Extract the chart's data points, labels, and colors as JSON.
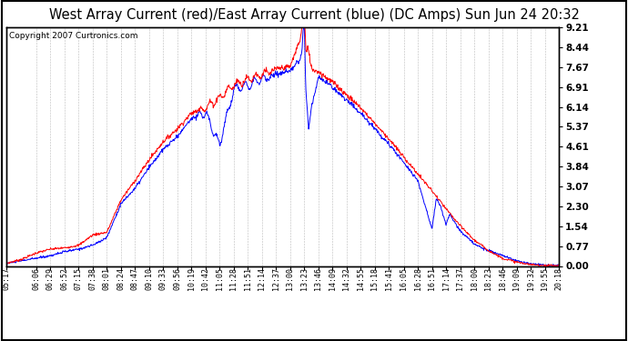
{
  "title": "West Array Current (red)/East Array Current (blue) (DC Amps) Sun Jun 24 20:32",
  "copyright": "Copyright 2007 Curtronics.com",
  "background_color": "#ffffff",
  "plot_bg_color": "#ffffff",
  "grid_color": "#aaaaaa",
  "ylim": [
    0.0,
    9.21
  ],
  "yticks": [
    0.0,
    0.77,
    1.54,
    2.3,
    3.07,
    3.84,
    4.61,
    5.37,
    6.14,
    6.91,
    7.67,
    8.44,
    9.21
  ],
  "xtick_labels": [
    "05:17",
    "06:06",
    "06:29",
    "06:52",
    "07:15",
    "07:38",
    "08:01",
    "08:24",
    "08:47",
    "09:10",
    "09:33",
    "09:56",
    "10:19",
    "10:42",
    "11:05",
    "11:28",
    "11:51",
    "12:14",
    "12:37",
    "13:00",
    "13:23",
    "13:46",
    "14:09",
    "14:32",
    "14:55",
    "15:18",
    "15:41",
    "16:05",
    "16:28",
    "16:51",
    "17:14",
    "17:37",
    "18:00",
    "18:23",
    "18:46",
    "19:09",
    "19:32",
    "19:55",
    "20:18"
  ],
  "red_color": "#ff0000",
  "blue_color": "#0000ff",
  "title_fontsize": 10.5,
  "tick_fontsize": 6.0,
  "copyright_fontsize": 6.5
}
